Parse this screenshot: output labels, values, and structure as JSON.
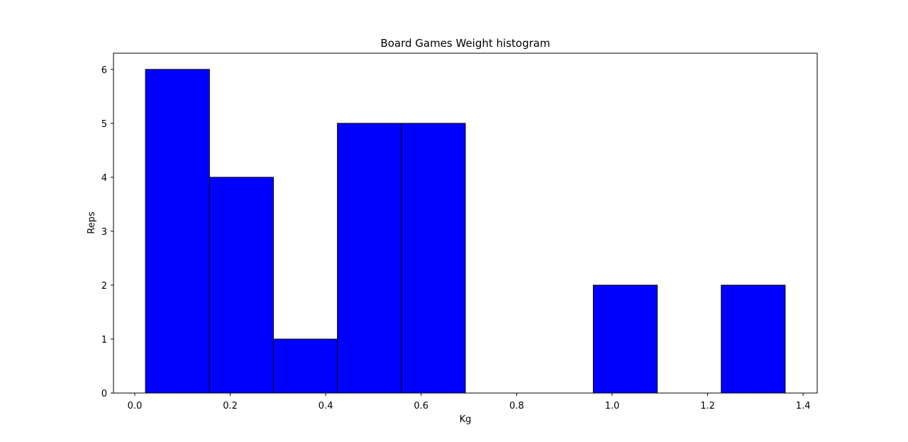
{
  "chart_data": {
    "type": "bar",
    "title": "Board Games Weight histogram",
    "xlabel": "Kg",
    "ylabel": "Reps",
    "bins": [
      {
        "x0": 0.0225,
        "x1": 0.1565,
        "count": 6
      },
      {
        "x0": 0.1565,
        "x1": 0.2905,
        "count": 4
      },
      {
        "x0": 0.2905,
        "x1": 0.4245,
        "count": 1
      },
      {
        "x0": 0.4245,
        "x1": 0.5585,
        "count": 5
      },
      {
        "x0": 0.5585,
        "x1": 0.6925,
        "count": 5
      },
      {
        "x0": 0.6925,
        "x1": 0.8265,
        "count": 0
      },
      {
        "x0": 0.8265,
        "x1": 0.9605,
        "count": 0
      },
      {
        "x0": 0.9605,
        "x1": 1.0945,
        "count": 2
      },
      {
        "x0": 1.0945,
        "x1": 1.2285,
        "count": 0
      },
      {
        "x0": 1.2285,
        "x1": 1.3625,
        "count": 2
      }
    ],
    "xlim": [
      -0.0445,
      1.4295
    ],
    "ylim": [
      0,
      6.3
    ],
    "xticks": [
      {
        "value": 0.0,
        "label": "0.0"
      },
      {
        "value": 0.2,
        "label": "0.2"
      },
      {
        "value": 0.4,
        "label": "0.4"
      },
      {
        "value": 0.6,
        "label": "0.6"
      },
      {
        "value": 0.8,
        "label": "0.8"
      },
      {
        "value": 1.0,
        "label": "1.0"
      },
      {
        "value": 1.2,
        "label": "1.2"
      },
      {
        "value": 1.4,
        "label": "1.4"
      }
    ],
    "yticks": [
      {
        "value": 0,
        "label": "0"
      },
      {
        "value": 1,
        "label": "1"
      },
      {
        "value": 2,
        "label": "2"
      },
      {
        "value": 3,
        "label": "3"
      },
      {
        "value": 4,
        "label": "4"
      },
      {
        "value": 5,
        "label": "5"
      },
      {
        "value": 6,
        "label": "6"
      }
    ],
    "bar_color": "#0000ff",
    "edge_color": "#000000",
    "grid": false
  }
}
